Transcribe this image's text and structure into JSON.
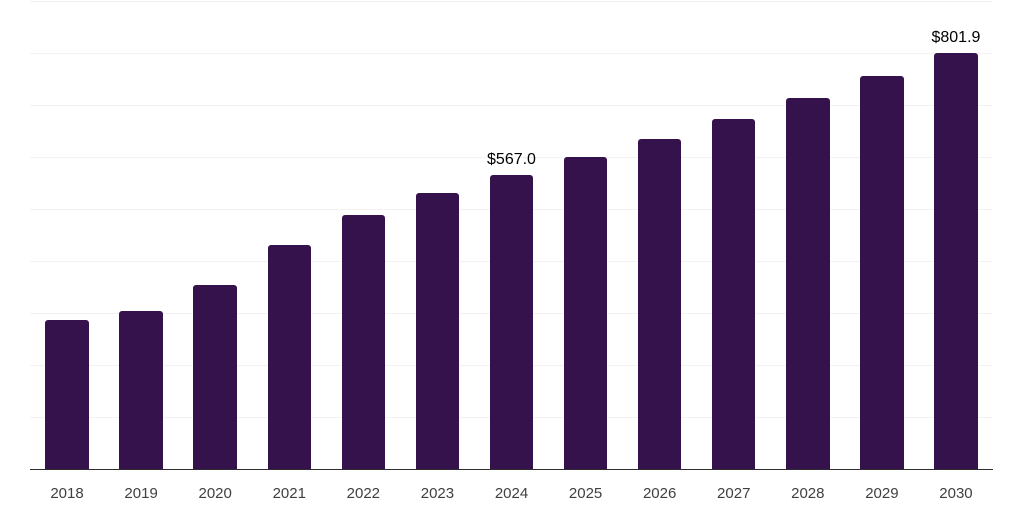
{
  "chart_data": {
    "type": "bar",
    "title": "",
    "xlabel": "",
    "ylabel": "",
    "categories": [
      "2018",
      "2019",
      "2020",
      "2021",
      "2022",
      "2023",
      "2024",
      "2025",
      "2026",
      "2027",
      "2028",
      "2029",
      "2030"
    ],
    "values": [
      287.6,
      305.4,
      355.3,
      431.4,
      489.5,
      532.5,
      567.0,
      600.7,
      636.5,
      674.4,
      714.5,
      757.0,
      801.9
    ],
    "data_labels": [
      {
        "index": 6,
        "text": "$567.0"
      },
      {
        "index": 12,
        "text": "$801.9"
      }
    ],
    "ylim": [
      0,
      900
    ],
    "gridline_interval": 100,
    "grid": "horizontal",
    "y_axis_tick_labels": "none",
    "legend": "none"
  },
  "colors": {
    "bar": "#35124B",
    "gridline": "#F2F2F2",
    "axis_line": "#2E2E2E",
    "tick_label": "#404040",
    "data_label": "#000000",
    "background": "#FFFFFF"
  }
}
